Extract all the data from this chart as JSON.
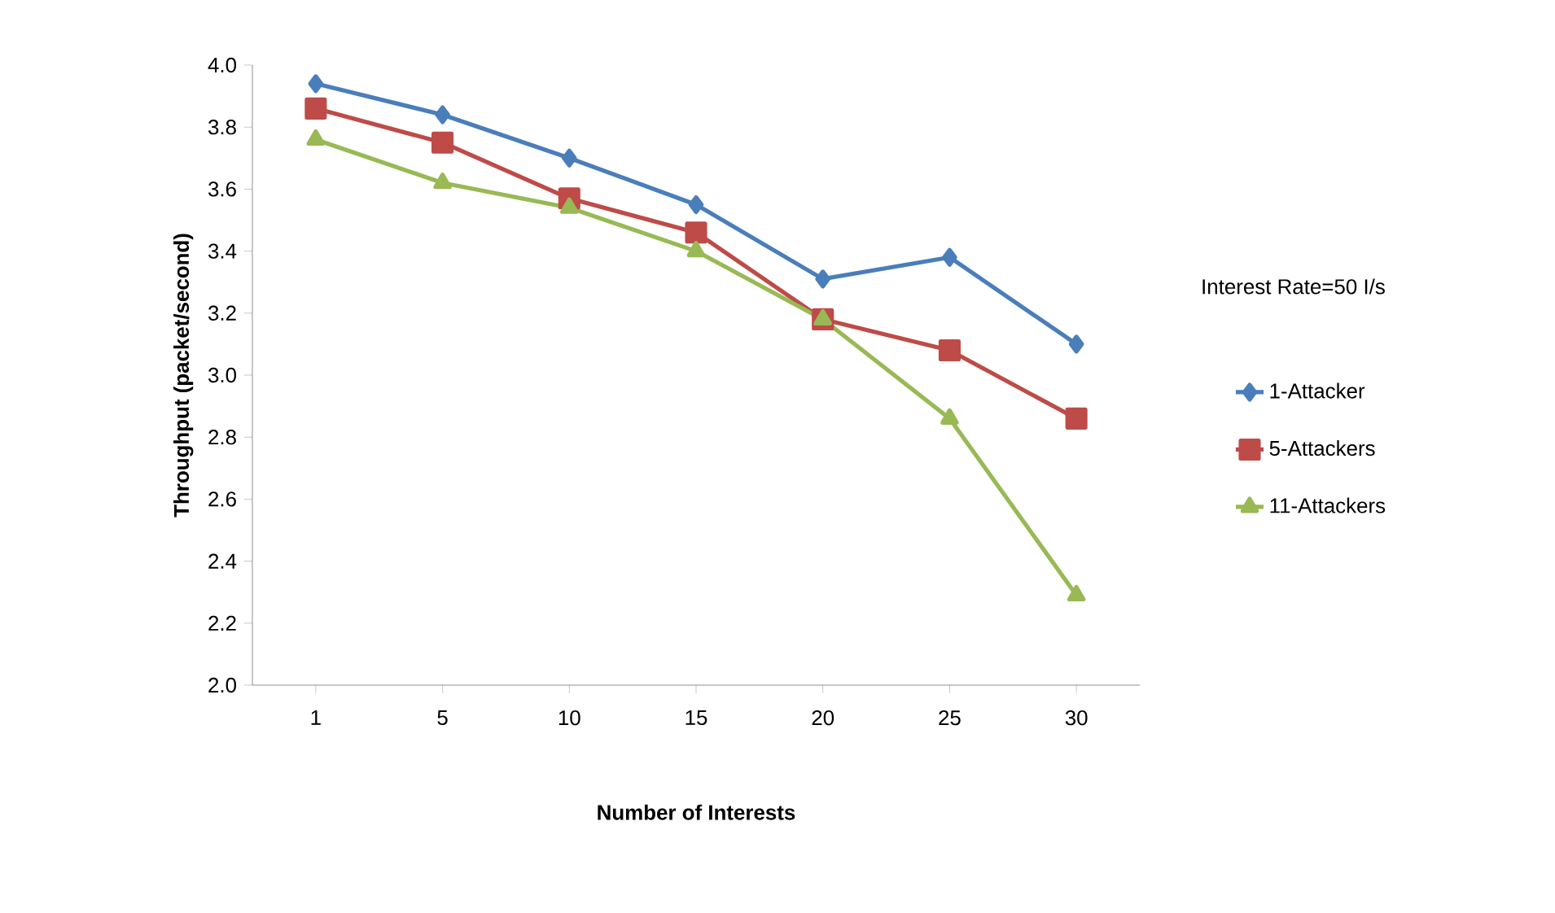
{
  "chart_data": {
    "type": "line",
    "xlabel": "Number of Interests",
    "ylabel": "Throughput (packet/second)",
    "legend_title": "Interest Rate=50 I/s",
    "categories": [
      "1",
      "5",
      "10",
      "15",
      "20",
      "25",
      "30"
    ],
    "series": [
      {
        "name": "1-Attacker",
        "color": "#4a7ebb",
        "marker": "diamond",
        "values": [
          3.94,
          3.84,
          3.7,
          3.55,
          3.31,
          3.38,
          3.1
        ]
      },
      {
        "name": "5-Attackers",
        "color": "#be4b48",
        "marker": "square",
        "values": [
          3.86,
          3.75,
          3.57,
          3.46,
          3.18,
          3.08,
          2.86
        ]
      },
      {
        "name": "11-Attackers",
        "color": "#98b954",
        "marker": "triangle",
        "values": [
          3.76,
          3.62,
          3.54,
          3.4,
          3.18,
          2.86,
          2.29
        ]
      }
    ],
    "ylim": [
      2.0,
      4.0
    ],
    "yticks": [
      {
        "value": 2.0,
        "label": "2.0"
      },
      {
        "value": 2.2,
        "label": "2.2"
      },
      {
        "value": 2.4,
        "label": "2.4"
      },
      {
        "value": 2.6,
        "label": "2.6"
      },
      {
        "value": 2.8,
        "label": "2.8"
      },
      {
        "value": 3.0,
        "label": "3.0"
      },
      {
        "value": 3.2,
        "label": "3.2"
      },
      {
        "value": 3.4,
        "label": "3.4"
      },
      {
        "value": 3.6,
        "label": "3.6"
      },
      {
        "value": 3.8,
        "label": "3.8"
      },
      {
        "value": 4.0,
        "label": "4.0"
      }
    ],
    "grid": false,
    "legend": "right",
    "line_style": "solid"
  }
}
